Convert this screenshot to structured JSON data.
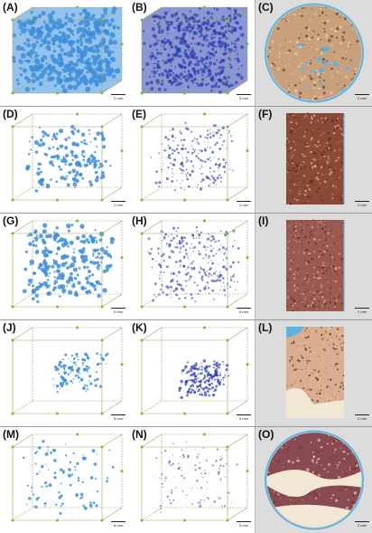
{
  "figure": {
    "panels": [
      {
        "id": "A",
        "label": "(A)",
        "scale": "2 mm",
        "kind": "volume",
        "style": "dense-light"
      },
      {
        "id": "B",
        "label": "(B)",
        "scale": "5 mm",
        "kind": "volume",
        "style": "dense-dark"
      },
      {
        "id": "C",
        "label": "(C)",
        "scale": "2 mm",
        "kind": "photo",
        "shape": "circle",
        "tone": "#c9a07c"
      },
      {
        "id": "D",
        "label": "(D)",
        "scale": "2 mm",
        "kind": "volume",
        "style": "sparse-light"
      },
      {
        "id": "E",
        "label": "(E)",
        "scale": "2 mm",
        "kind": "volume",
        "style": "sparse-dark"
      },
      {
        "id": "F",
        "label": "(F)",
        "scale": "2 mm",
        "kind": "photo",
        "shape": "rect",
        "tone": "#8a4a36"
      },
      {
        "id": "G",
        "label": "(G)",
        "scale": "5 mm",
        "kind": "volume",
        "style": "medium-light"
      },
      {
        "id": "H",
        "label": "(H)",
        "scale": "5 mm",
        "kind": "volume",
        "style": "medium-dark"
      },
      {
        "id": "I",
        "label": "(I)",
        "scale": "2 mm",
        "kind": "photo",
        "shape": "rect",
        "tone": "#9a5a52"
      },
      {
        "id": "J",
        "label": "(J)",
        "scale": "5 mm",
        "kind": "volume",
        "style": "cluster-light"
      },
      {
        "id": "K",
        "label": "(K)",
        "scale": "5 mm",
        "kind": "volume",
        "style": "cluster-dark"
      },
      {
        "id": "L",
        "label": "(L)",
        "scale": "2 mm",
        "kind": "photo",
        "shape": "rect",
        "tone": "#d9ad8e"
      },
      {
        "id": "M",
        "label": "(M)",
        "scale": "5 mm",
        "kind": "volume",
        "style": "scatter-light"
      },
      {
        "id": "N",
        "label": "(N)",
        "scale": "5 mm",
        "kind": "volume",
        "style": "scatter-dark"
      },
      {
        "id": "O",
        "label": "(O)",
        "scale": "2 mm",
        "kind": "photo",
        "shape": "circle",
        "tone": "#8a4a52"
      }
    ],
    "colors": {
      "light_blue": "#3d8fdc",
      "dark_blue": "#2b3fae",
      "green_marker": "#6fbf3a",
      "frame": "#9aa860",
      "photo_bg": "#dcdcdc",
      "ring": "#5fb3e0",
      "cream": "#f1e7d4"
    }
  }
}
